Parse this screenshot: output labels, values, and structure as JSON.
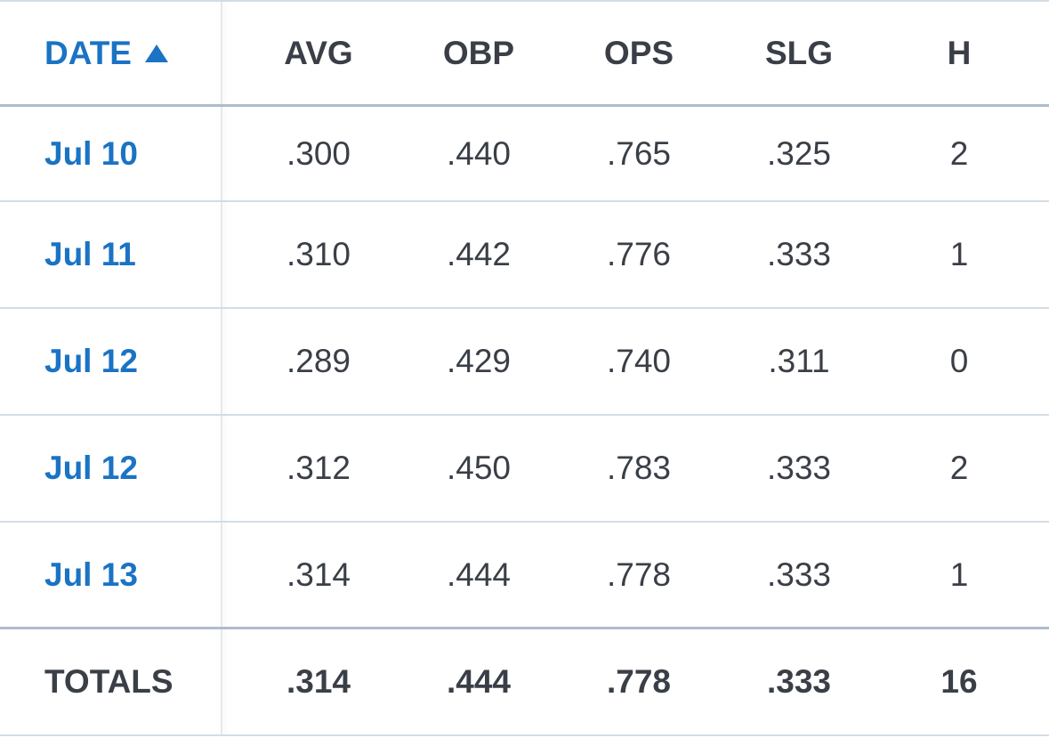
{
  "table": {
    "header": [
      "DATE",
      "AVG",
      "OBP",
      "OPS",
      "SLG",
      "H"
    ],
    "rows": [
      [
        "Jul 10",
        ".300",
        ".440",
        ".765",
        ".325",
        "2"
      ],
      [
        "Jul 11",
        ".310",
        ".442",
        ".776",
        ".333",
        "1"
      ],
      [
        "Jul 12",
        ".289",
        ".429",
        ".740",
        ".311",
        "0"
      ],
      [
        "Jul 12",
        ".312",
        ".450",
        ".783",
        ".333",
        "2"
      ],
      [
        "Jul 13",
        ".314",
        ".444",
        ".778",
        ".333",
        "1"
      ]
    ],
    "totals": [
      "TOTALS",
      ".314",
      ".444",
      ".778",
      ".333",
      "16"
    ]
  }
}
